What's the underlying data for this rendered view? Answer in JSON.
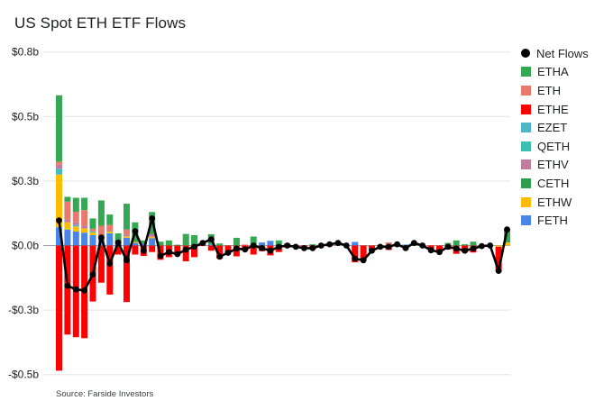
{
  "title": "US Spot ETH ETF Flows",
  "source": "Source: Farside Investors",
  "colors": {
    "net_line": "#000000",
    "gridline": "#e3e3e3",
    "zero_line": "#9aa0a6",
    "axis_text": "#202124",
    "background": "#ffffff"
  },
  "legend": [
    {
      "label": "Net Flows",
      "color": "#000000",
      "shape": "circle"
    },
    {
      "label": "ETHA",
      "color": "#34a853",
      "shape": "square"
    },
    {
      "label": "ETH",
      "color": "#e8796b",
      "shape": "square"
    },
    {
      "label": "ETHE",
      "color": "#ff0000",
      "shape": "square"
    },
    {
      "label": "EZET",
      "color": "#4db7c9",
      "shape": "square"
    },
    {
      "label": "QETH",
      "color": "#3fbfb4",
      "shape": "square"
    },
    {
      "label": "ETHV",
      "color": "#c27ba0",
      "shape": "square"
    },
    {
      "label": "CETH",
      "color": "#2c9e4e",
      "shape": "square"
    },
    {
      "label": "ETHW",
      "color": "#fbbc04",
      "shape": "square"
    },
    {
      "label": "FETH",
      "color": "#4a86e8",
      "shape": "square"
    }
  ],
  "chart_data": {
    "type": "bar",
    "subtype": "stacked bars (daily ETF flows, $ billions) with black Net Flows line overlay",
    "title": "US Spot ETH ETF Flows",
    "xlabel": "",
    "ylabel": "",
    "x_axis_labels": "none (trading days since launch, unlabeled)",
    "grid": "horizontal",
    "legend_position": "right",
    "ylim": [
      -0.55,
      0.85
    ],
    "y_ticks": [
      {
        "label": "$0.8b",
        "value": 0.75
      },
      {
        "label": "$0.5b",
        "value": 0.5
      },
      {
        "label": "$0.3b",
        "value": 0.25
      },
      {
        "label": "$0.0b",
        "value": 0
      },
      {
        "label": "-$0.3b",
        "value": -0.25
      },
      {
        "label": "-$0.5b",
        "value": -0.5
      }
    ],
    "categories": [
      1,
      2,
      3,
      4,
      5,
      6,
      7,
      8,
      9,
      10,
      11,
      12,
      13,
      14,
      15,
      16,
      17,
      18,
      19,
      20,
      21,
      22,
      23,
      24,
      25,
      26,
      27,
      28,
      29,
      30,
      31,
      32,
      33,
      34,
      35,
      36,
      37,
      38,
      39,
      40,
      41,
      42,
      43,
      44,
      45,
      46,
      47,
      48,
      49,
      50,
      51,
      52,
      53,
      54
    ],
    "stack_order": [
      "FETH",
      "ETHW",
      "EZET",
      "QETH",
      "ETHV",
      "ETH",
      "ETHA",
      "CETH",
      "ETHE"
    ],
    "series": [
      {
        "name": "FETH",
        "color": "#4a86e8",
        "values": [
          0.071,
          0.062,
          0.054,
          0.05,
          0.04,
          0.028,
          0.048,
          0.012,
          0.03,
          0.01,
          0.01,
          0.028,
          0,
          0,
          0,
          0,
          0,
          0.008,
          0.004,
          0,
          0,
          0,
          0,
          0,
          0.012,
          0.018,
          0,
          0.008,
          0,
          0,
          0,
          0,
          0,
          0.004,
          0,
          0.014,
          0,
          0,
          0,
          0,
          0,
          0.004,
          0,
          0,
          0,
          0,
          0,
          0,
          0,
          0,
          0,
          0,
          0,
          0
        ]
      },
      {
        "name": "ETHW",
        "color": "#fbbc04",
        "values": [
          0.204,
          0.028,
          0.02,
          0.016,
          0.01,
          0.004,
          0.006,
          0,
          0.006,
          0.004,
          0,
          0.006,
          0,
          0,
          0,
          0,
          0,
          0,
          0,
          0,
          0,
          0,
          0,
          0,
          0,
          0,
          0,
          0,
          0,
          0,
          0,
          0,
          0,
          0,
          0,
          0,
          0,
          0,
          0,
          0,
          0,
          0,
          0,
          0,
          0,
          0,
          0,
          0,
          0,
          0,
          0,
          0,
          -0.005,
          0.012
        ]
      },
      {
        "name": "EZET",
        "color": "#4db7c9",
        "values": [
          0.013,
          0,
          0.006,
          0,
          0,
          0,
          0,
          0,
          0,
          0,
          0,
          0,
          0,
          0,
          0,
          0,
          0,
          0,
          0,
          0,
          0,
          0,
          0,
          0,
          0,
          0,
          0,
          0,
          0,
          0,
          0,
          0,
          0,
          0,
          0,
          0,
          0,
          0,
          0,
          0,
          0,
          0,
          0,
          0,
          0,
          0,
          0,
          0,
          0,
          0,
          0,
          0,
          0,
          0
        ]
      },
      {
        "name": "QETH",
        "color": "#3fbfb4",
        "values": [
          0.01,
          0,
          0,
          0,
          0.005,
          0,
          0,
          0,
          0,
          0,
          0,
          0,
          0,
          0,
          0,
          0,
          0,
          0,
          0,
          0,
          0,
          0,
          0,
          0,
          0,
          0,
          0,
          0,
          0.002,
          0,
          0,
          0,
          0,
          0,
          0,
          0,
          0,
          0,
          0,
          0,
          0,
          0,
          0,
          0,
          0,
          0,
          0,
          0,
          0,
          0,
          0,
          0,
          0,
          0
        ]
      },
      {
        "name": "ETHV",
        "color": "#c27ba0",
        "values": [
          0.015,
          0.012,
          0.01,
          0.012,
          0,
          0,
          0.004,
          0,
          0.006,
          0,
          0,
          0.01,
          0,
          0,
          0,
          0,
          0,
          0,
          0,
          0,
          0,
          0,
          0,
          0,
          0,
          0,
          0,
          0,
          0,
          0,
          0,
          0,
          0,
          0,
          0,
          0,
          0,
          0,
          0,
          0,
          0,
          0,
          0,
          0,
          0,
          0,
          0,
          0,
          0,
          0,
          0,
          0,
          0,
          0
        ]
      },
      {
        "name": "ETH",
        "color": "#e8796b",
        "values": [
          0.012,
          0.068,
          0.041,
          0.059,
          0.01,
          0.045,
          0.022,
          0,
          0.02,
          0,
          0,
          0,
          0,
          0,
          0,
          0,
          0,
          0,
          0,
          0,
          0,
          0,
          0.004,
          0,
          0,
          0,
          0,
          0,
          0,
          0,
          0,
          0.003,
          0.008,
          0,
          0,
          0,
          0,
          0,
          0,
          0.012,
          0,
          0,
          0,
          0,
          0,
          0,
          0,
          0,
          0,
          0,
          0,
          0,
          0,
          0
        ]
      },
      {
        "name": "ETHA",
        "color": "#34a853",
        "values": [
          0.25,
          0.019,
          0.054,
          0.048,
          0.04,
          0.098,
          0.04,
          0.035,
          0.1,
          0.076,
          0.01,
          0.086,
          0.015,
          0.02,
          0.003,
          0.045,
          0.04,
          0.004,
          0.04,
          0.008,
          0,
          0.03,
          0,
          0.035,
          0,
          0,
          0.02,
          0,
          0,
          0,
          0.005,
          0,
          0,
          0.006,
          0,
          0,
          0,
          0,
          0,
          0,
          0.005,
          0,
          0.01,
          0,
          0,
          0,
          0.01,
          0.02,
          0.005,
          0.015,
          0,
          0,
          0,
          0.05
        ]
      },
      {
        "name": "CETH",
        "color": "#2c9e4e",
        "values": [
          0.007,
          0,
          0,
          0,
          0,
          0,
          0,
          0,
          0,
          0,
          0,
          0,
          0,
          0,
          0,
          0,
          0,
          0,
          0,
          0,
          0,
          0,
          0,
          0,
          0,
          0,
          0,
          0,
          0,
          0,
          0,
          0,
          0,
          0,
          0,
          0,
          0,
          0,
          0,
          0,
          0,
          0,
          0,
          0,
          0,
          0,
          0,
          0,
          0,
          0,
          0,
          0,
          0,
          0
        ]
      },
      {
        "name": "ETHE",
        "color": "#ff0000",
        "values": [
          -0.485,
          -0.345,
          -0.355,
          -0.359,
          -0.217,
          -0.144,
          -0.19,
          -0.035,
          -0.219,
          -0.035,
          -0.04,
          -0.025,
          -0.055,
          -0.045,
          -0.036,
          -0.061,
          -0.045,
          -0.002,
          -0.02,
          -0.051,
          -0.028,
          -0.042,
          -0.019,
          -0.035,
          -0.022,
          -0.038,
          -0.025,
          -0.008,
          -0.007,
          -0.01,
          -0.015,
          -0.003,
          -0.003,
          0,
          0,
          -0.065,
          -0.057,
          -0.02,
          -0.005,
          -0.017,
          0,
          -0.014,
          0,
          0,
          -0.018,
          -0.025,
          -0.015,
          -0.032,
          -0.025,
          -0.027,
          -0.002,
          0,
          -0.093,
          0
        ]
      }
    ],
    "net_flows": {
      "name": "Net Flows",
      "color": "#000000",
      "style": "line with point markers",
      "values": [
        0.097,
        -0.156,
        -0.17,
        -0.174,
        -0.112,
        0.031,
        -0.07,
        0.012,
        -0.057,
        0.055,
        -0.02,
        0.105,
        -0.04,
        -0.025,
        -0.033,
        -0.016,
        -0.005,
        0.01,
        0.024,
        -0.043,
        -0.028,
        -0.012,
        -0.015,
        0,
        -0.01,
        -0.02,
        -0.005,
        0,
        -0.005,
        -0.01,
        -0.01,
        0,
        0.005,
        0.01,
        0,
        -0.051,
        -0.057,
        -0.02,
        -0.005,
        -0.005,
        0.005,
        -0.01,
        0.01,
        0,
        -0.018,
        -0.025,
        -0.005,
        -0.012,
        -0.02,
        -0.012,
        -0.002,
        0,
        -0.098,
        0.062
      ]
    }
  }
}
